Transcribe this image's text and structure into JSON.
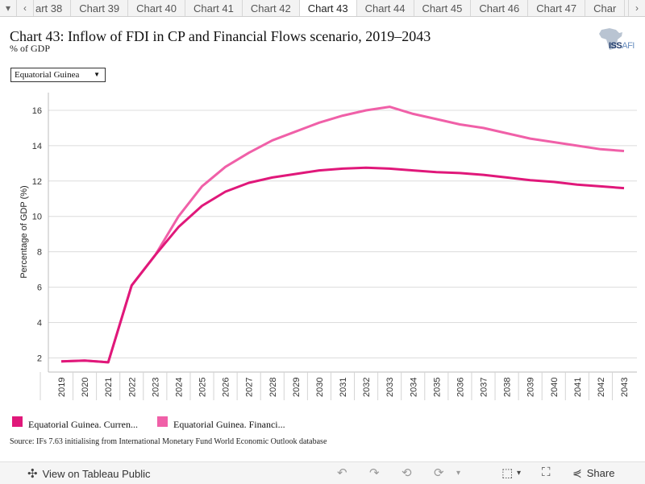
{
  "tabs": {
    "prev_icon": "chevron-left-icon",
    "next_icon": "chevron-right-icon",
    "items": [
      "art 38",
      "Chart 39",
      "Chart 40",
      "Chart 41",
      "Chart 42",
      "Chart 43",
      "Chart 44",
      "Chart 45",
      "Chart 46",
      "Chart 47",
      "Char"
    ],
    "active": "Chart 43"
  },
  "header": {
    "title": "Chart 43: Inflow of FDI in CP and Financial Flows scenario, 2019–2043",
    "subtitle": "% of GDP",
    "logo_text": "ISS",
    "logo_suffix": "AFI"
  },
  "filter": {
    "selected": "Equatorial Guinea",
    "caret": "▼"
  },
  "chart_data": {
    "type": "line",
    "ylabel": "Percentage of GDP (%)",
    "ylim": [
      1.2,
      17
    ],
    "yticks": [
      2,
      4,
      6,
      8,
      10,
      12,
      14,
      16
    ],
    "x": [
      "2019",
      "2020",
      "2021",
      "2022",
      "2023",
      "2024",
      "2025",
      "2026",
      "2027",
      "2028",
      "2029",
      "2030",
      "2031",
      "2032",
      "2033",
      "2034",
      "2035",
      "2036",
      "2037",
      "2038",
      "2039",
      "2040",
      "2041",
      "2042",
      "2043"
    ],
    "grid": "horizontal",
    "series": [
      {
        "name": "Equatorial Guinea. Curren...",
        "color": "#e0187a",
        "values": [
          1.8,
          1.85,
          1.75,
          6.1,
          7.8,
          9.4,
          10.6,
          11.4,
          11.9,
          12.2,
          12.4,
          12.6,
          12.7,
          12.75,
          12.7,
          12.6,
          12.5,
          12.45,
          12.35,
          12.2,
          12.05,
          11.95,
          11.8,
          11.7,
          11.6
        ]
      },
      {
        "name": "Equatorial Guinea. Financi...",
        "color": "#f060a8",
        "values": [
          1.8,
          1.85,
          1.75,
          6.1,
          7.8,
          10.0,
          11.7,
          12.8,
          13.6,
          14.3,
          14.8,
          15.3,
          15.7,
          16.0,
          16.2,
          15.8,
          15.5,
          15.2,
          15.0,
          14.7,
          14.4,
          14.2,
          14.0,
          13.8,
          13.7
        ]
      }
    ]
  },
  "source": "Source: IFs 7.63 initialising from International Monetary Fund World Economic Outlook database",
  "toolbar": {
    "view_label": "View on Tableau Public",
    "view_icon": "tableau-icon",
    "share_label": "Share",
    "share_icon": "share-icon",
    "undo_icon": "undo-icon",
    "redo_icon": "redo-icon",
    "revert_icon": "revert-icon",
    "download_icon": "download-icon",
    "fullscreen_icon": "fullscreen-icon"
  }
}
